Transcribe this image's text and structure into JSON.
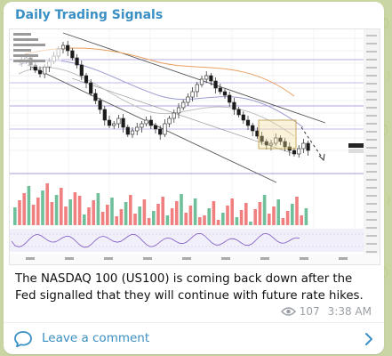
{
  "channel": {
    "name": "Daily Trading Signals"
  },
  "message": {
    "text": "The NASDAQ 100 (US100) is coming back down after the Fed signalled that they will continue with future rate hikes.",
    "views": "107",
    "time": "3:38 AM"
  },
  "comment": {
    "label": "Leave a comment"
  },
  "colors": {
    "accent": "#3a8fc4",
    "background": "#c9d6a4",
    "bull_candle": "#1b1b1b",
    "bear_candle": "#ffffff",
    "volume_up": "#6fbf9a",
    "volume_down": "#f08080"
  },
  "icons": {
    "views": "eye-icon",
    "comment": "comment-bubble-icon",
    "arrow": "chevron-right-icon"
  }
}
